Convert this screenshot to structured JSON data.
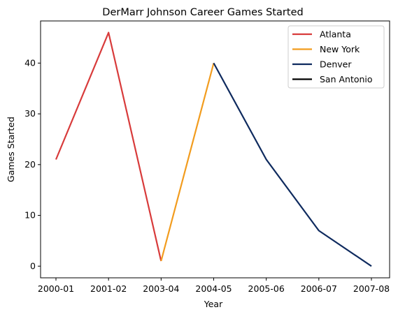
{
  "chart_data": {
    "type": "line",
    "title": "DerMarr Johnson Career Games Started",
    "xlabel": "Year",
    "ylabel": "Games Started",
    "categories": [
      "2000-01",
      "2001-02",
      "2003-04",
      "2004-05",
      "2005-06",
      "2006-07",
      "2007-08"
    ],
    "ylim": [
      -2.3,
      48.3
    ],
    "yticks": [
      0,
      10,
      20,
      30,
      40
    ],
    "grid": false,
    "legend_position": "top-right",
    "series": [
      {
        "name": "Atlanta",
        "color": "#d83b3b",
        "points": [
          {
            "x": "2000-01",
            "y": 21
          },
          {
            "x": "2001-02",
            "y": 46
          },
          {
            "x": "2003-04",
            "y": 1
          }
        ]
      },
      {
        "name": "New York",
        "color": "#f29c1e",
        "points": [
          {
            "x": "2003-04",
            "y": 1
          },
          {
            "x": "2004-05",
            "y": 40
          }
        ]
      },
      {
        "name": "Denver",
        "color": "#0e2a5e",
        "points": [
          {
            "x": "2004-05",
            "y": 40
          },
          {
            "x": "2005-06",
            "y": 21
          },
          {
            "x": "2006-07",
            "y": 7
          },
          {
            "x": "2007-08",
            "y": 0
          }
        ]
      },
      {
        "name": "San Antonio",
        "color": "#000000",
        "points": []
      }
    ]
  }
}
